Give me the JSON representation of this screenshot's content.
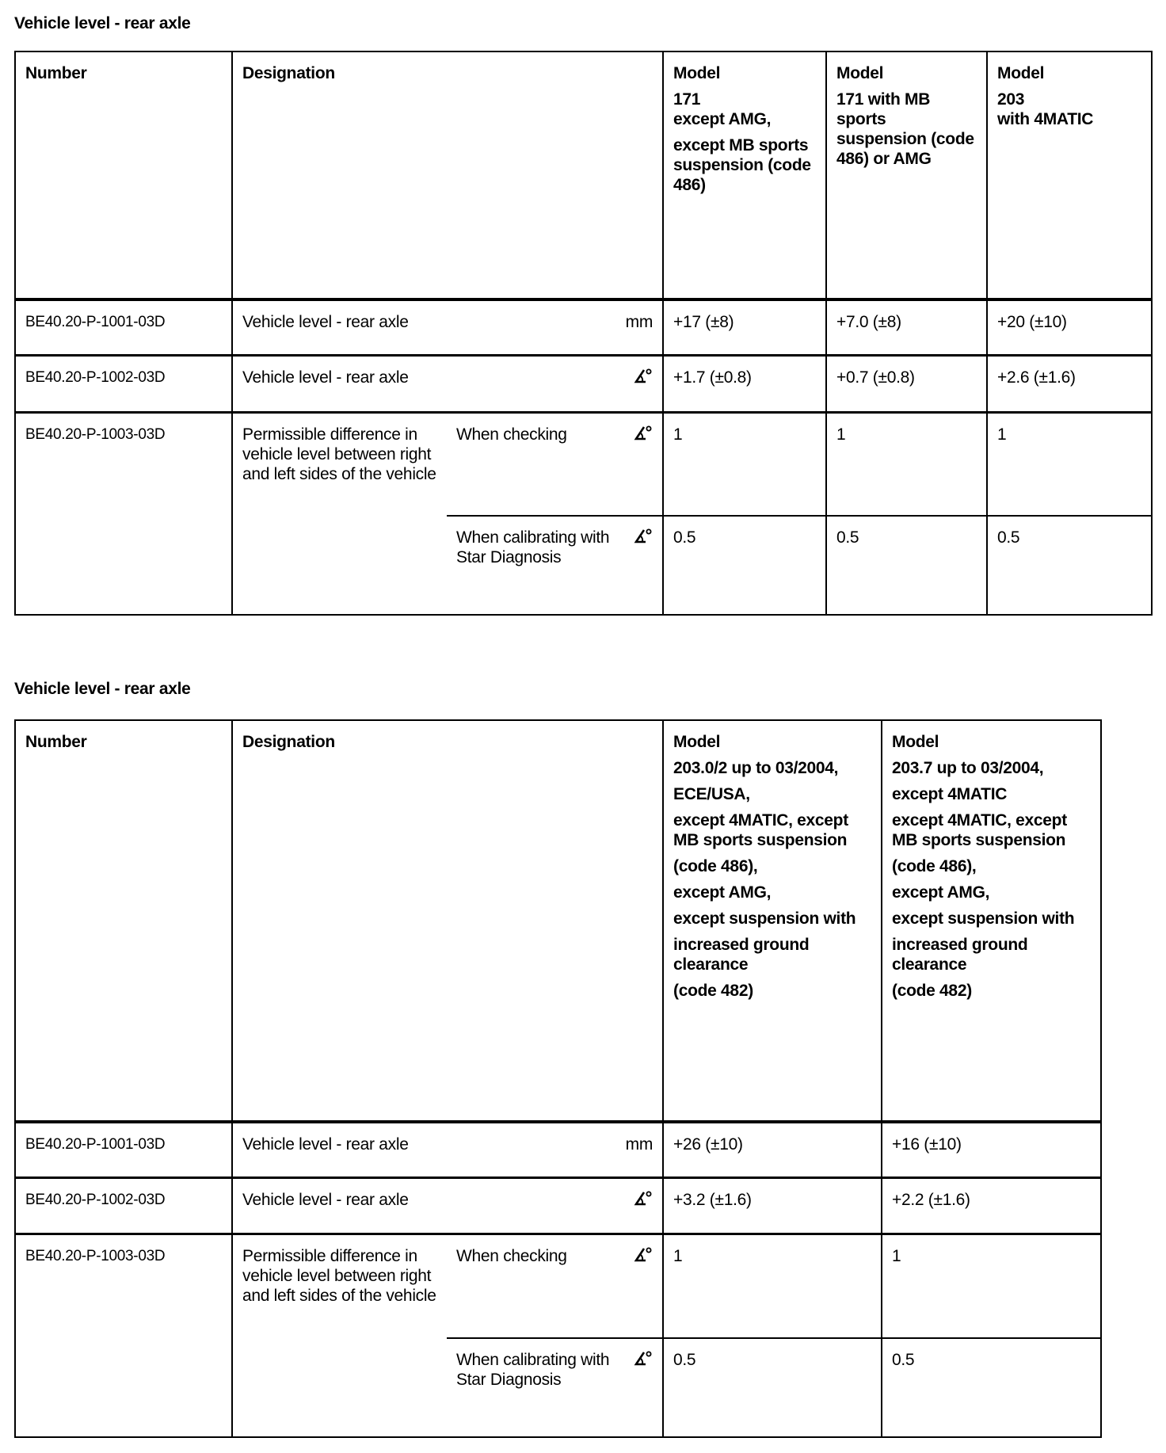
{
  "tables": [
    {
      "title": "Vehicle level - rear axle",
      "headers": {
        "number": "Number",
        "designation": "Designation",
        "models": [
          [
            "Model",
            "171\nexcept AMG,",
            "except MB sports suspension (code 486)"
          ],
          [
            "Model",
            "171 with MB sports suspension (code 486) or AMG"
          ],
          [
            "Model",
            "203\nwith 4MATIC"
          ]
        ]
      },
      "rows": [
        {
          "number": "BE40.20-P-1001-03D",
          "designation": "Vehicle level - rear axle",
          "unit": "mm",
          "values": [
            "+17 (±8)",
            "+7.0 (±8)",
            "+20 (±10)"
          ]
        },
        {
          "number": "BE40.20-P-1002-03D",
          "designation": "Vehicle level - rear axle",
          "unit": "angle-degree-icon",
          "values": [
            "+1.7 (±0.8)",
            "+0.7 (±0.8)",
            "+2.6 (±1.6)"
          ]
        }
      ],
      "diff_row": {
        "number": "BE40.20-P-1003-03D",
        "designation": "Permissible difference in vehicle level between right and left sides of the vehicle",
        "sub": [
          {
            "label": "When checking",
            "unit": "angle-degree-icon",
            "values": [
              "1",
              "1",
              "1"
            ]
          },
          {
            "label": "When calibrating with Star Diagnosis",
            "unit": "angle-degree-icon",
            "values": [
              "0.5",
              "0.5",
              "0.5"
            ]
          }
        ]
      }
    },
    {
      "title": "Vehicle level - rear axle",
      "headers": {
        "number": "Number",
        "designation": "Designation",
        "models": [
          [
            "Model",
            "203.0/2 up to 03/2004,",
            "ECE/USA,",
            "except 4MATIC, except MB sports suspension",
            "(code 486),",
            "except AMG,",
            "except suspension with",
            "increased ground clearance",
            "(code 482)"
          ],
          [
            "Model",
            "203.7 up to 03/2004,",
            "except 4MATIC",
            "except 4MATIC, except MB sports suspension",
            "(code 486),",
            "except AMG,",
            "except suspension with",
            "increased ground clearance",
            "(code 482)"
          ]
        ]
      },
      "rows": [
        {
          "number": "BE40.20-P-1001-03D",
          "designation": "Vehicle level - rear axle",
          "unit": "mm",
          "values": [
            "+26 (±10)",
            "+16 (±10)"
          ]
        },
        {
          "number": "BE40.20-P-1002-03D",
          "designation": "Vehicle level - rear axle",
          "unit": "angle-degree-icon",
          "values": [
            "+3.2 (±1.6)",
            "+2.2 (±1.6)"
          ]
        }
      ],
      "diff_row": {
        "number": "BE40.20-P-1003-03D",
        "designation": "Permissible difference in vehicle level between right and left sides of the vehicle",
        "sub": [
          {
            "label": "When checking",
            "unit": "angle-degree-icon",
            "values": [
              "1",
              "1"
            ]
          },
          {
            "label": "When calibrating with Star Diagnosis",
            "unit": "angle-degree-icon",
            "values": [
              "0.5",
              "0.5"
            ]
          }
        ]
      }
    }
  ]
}
